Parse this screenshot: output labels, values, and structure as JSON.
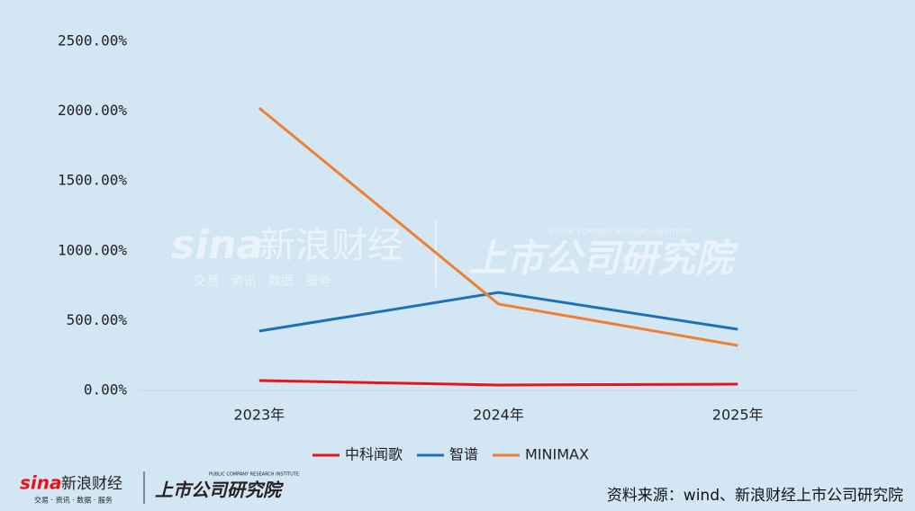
{
  "chart_data": {
    "type": "line",
    "categories": [
      "2023年",
      "2024年",
      "2025年"
    ],
    "series": [
      {
        "name": "中科闻歌",
        "color": "#e8141b",
        "values": [
          71,
          39,
          45
        ]
      },
      {
        "name": "智谱",
        "color": "#1f6fb8",
        "values": [
          425,
          702,
          438
        ]
      },
      {
        "name": "MINIMAX",
        "color": "#ef7f33",
        "values": [
          2023,
          619,
          322
        ]
      }
    ],
    "ylim": [
      0,
      2500
    ],
    "yticks": [
      {
        "value": 0,
        "label": "0.00%"
      },
      {
        "value": 500,
        "label": "500.00%"
      },
      {
        "value": 1000,
        "label": "1000.00%"
      },
      {
        "value": 1500,
        "label": "1500.00%"
      },
      {
        "value": 2000,
        "label": "2000.00%"
      },
      {
        "value": 2500,
        "label": "2500.00%"
      }
    ],
    "legend": "bottom",
    "source": "资料来源：wind、新浪财经上市公司研究院"
  },
  "logo": {
    "sina": "sina",
    "name": "新浪财经",
    "slogan": "交易 · 资讯 · 数据 · 服务",
    "institute": "上市公司研究院",
    "institute_en": "PUBLIC COMPANY RESEARCH INSTITUTE"
  }
}
